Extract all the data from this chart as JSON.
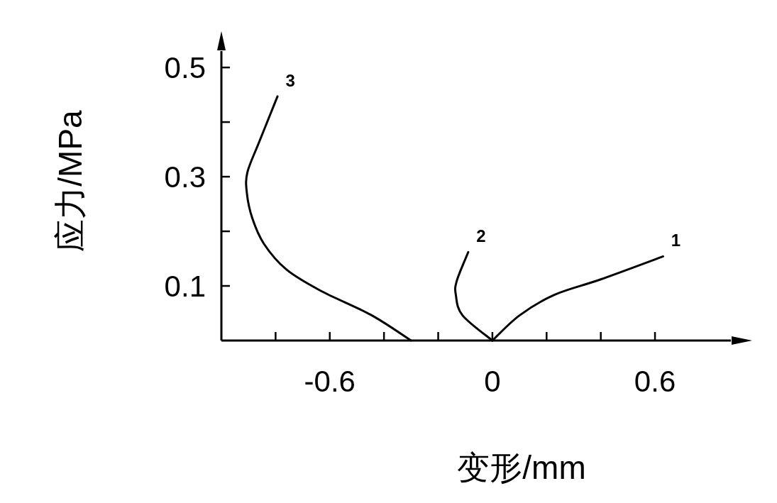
{
  "chart_data": {
    "type": "line",
    "xlabel": "变形/mm",
    "ylabel": "应力/MPa",
    "xlim": [
      -1.0,
      0.88
    ],
    "ylim": [
      0,
      0.53
    ],
    "xticks": [
      {
        "value": -0.8,
        "label": null
      },
      -0.6,
      {
        "value": -0.4,
        "label": null
      },
      {
        "value": -0.2,
        "label": null
      },
      0,
      {
        "value": 0.2,
        "label": null
      },
      {
        "value": 0.4,
        "label": null
      },
      0.6
    ],
    "yticks": [
      0.1,
      {
        "value": 0.2,
        "label": null
      },
      0.3,
      {
        "value": 0.4,
        "label": null
      },
      0.5
    ],
    "grid": false,
    "series": [
      {
        "name": "1",
        "color": "#000000",
        "x": [
          0,
          0.1,
          0.23,
          0.4,
          0.63
        ],
        "values": [
          0,
          0.046,
          0.084,
          0.112,
          0.154
        ]
      },
      {
        "name": "2",
        "color": "#000000",
        "x": [
          0,
          -0.11,
          -0.135,
          -0.131,
          -0.089
        ],
        "values": [
          0,
          0.046,
          0.084,
          0.11,
          0.162
        ]
      },
      {
        "name": "3",
        "color": "#000000",
        "x": [
          -0.3,
          -0.448,
          -0.633,
          -0.76,
          -0.843,
          -0.886,
          -0.906,
          -0.904,
          -0.861,
          -0.793
        ],
        "values": [
          0,
          0.047,
          0.091,
          0.13,
          0.177,
          0.224,
          0.27,
          0.308,
          0.363,
          0.447
        ]
      }
    ]
  }
}
